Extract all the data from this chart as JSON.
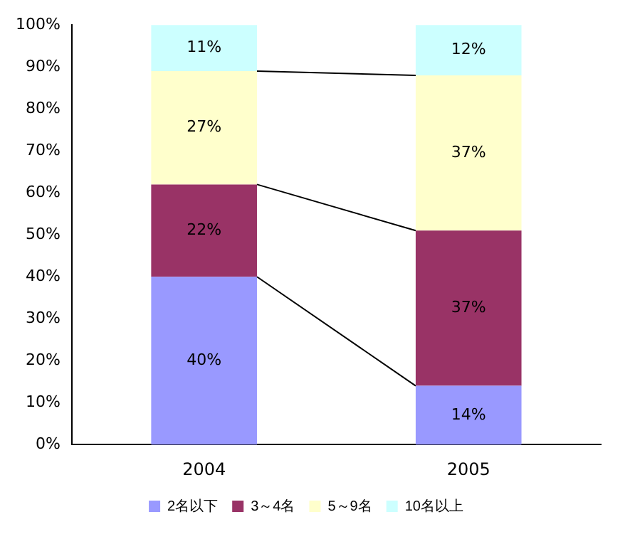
{
  "chart_data": {
    "type": "bar",
    "stacked": true,
    "categories": [
      "2004",
      "2005"
    ],
    "series": [
      {
        "name": "2名以下",
        "color": "#9999ff",
        "values": [
          40,
          14
        ],
        "value_labels": [
          "40%",
          "14%"
        ]
      },
      {
        "name": "3～4名",
        "color": "#993366",
        "values": [
          22,
          37
        ],
        "value_labels": [
          "22%",
          "37%"
        ]
      },
      {
        "name": "5～9名",
        "color": "#ffffcc",
        "values": [
          27,
          37
        ],
        "value_labels": [
          "27%",
          "37%"
        ]
      },
      {
        "name": "10名以上",
        "color": "#ccffff",
        "values": [
          11,
          12
        ],
        "value_labels": [
          "11%",
          "12%"
        ]
      }
    ],
    "ylim": [
      0,
      100
    ],
    "yticks": [
      {
        "value": 0,
        "label": "0%"
      },
      {
        "value": 10,
        "label": "10%"
      },
      {
        "value": 20,
        "label": "20%"
      },
      {
        "value": 30,
        "label": "30%"
      },
      {
        "value": 40,
        "label": "40%"
      },
      {
        "value": 50,
        "label": "50%"
      },
      {
        "value": 60,
        "label": "60%"
      },
      {
        "value": 70,
        "label": "70%"
      },
      {
        "value": 80,
        "label": "80%"
      },
      {
        "value": 90,
        "label": "90%"
      },
      {
        "value": 100,
        "label": "100%"
      }
    ],
    "grid": false,
    "legend": "bottom"
  }
}
